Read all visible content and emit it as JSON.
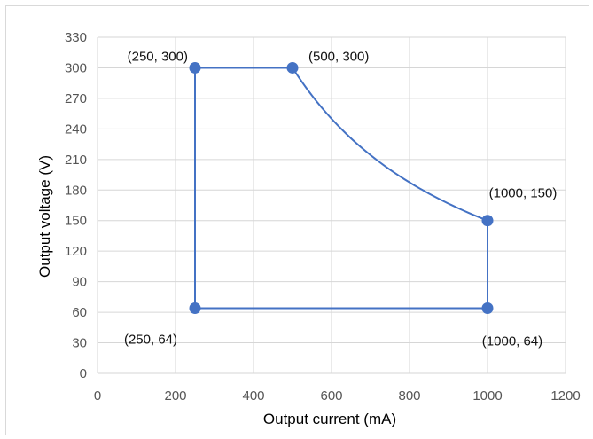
{
  "chart_data": {
    "type": "line",
    "title": "",
    "xlabel": "Output current (mA)",
    "ylabel": "Output voltage (V)",
    "xlim": [
      0,
      1200
    ],
    "ylim": [
      0,
      330
    ],
    "xticks": [
      0,
      200,
      400,
      600,
      800,
      1000,
      1200
    ],
    "yticks": [
      0,
      30,
      60,
      90,
      120,
      150,
      180,
      210,
      240,
      270,
      300,
      330
    ],
    "grid": true,
    "legend": "none",
    "line_color": "#4472c4",
    "series": [
      {
        "points": [
          {
            "x": 250,
            "y": 300,
            "label": "(250, 300)"
          },
          {
            "x": 500,
            "y": 300,
            "label": "(500, 300)"
          },
          {
            "x": 1000,
            "y": 150,
            "label": "(1000, 150)"
          },
          {
            "x": 1000,
            "y": 64,
            "label": "(1000, 64)"
          },
          {
            "x": 250,
            "y": 64,
            "label": "(250, 64)"
          }
        ],
        "curve_between": [
          1,
          2
        ],
        "closed": true
      }
    ]
  }
}
